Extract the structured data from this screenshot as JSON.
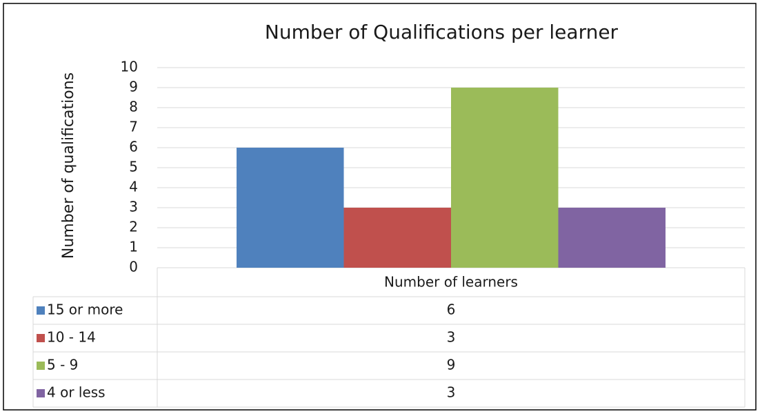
{
  "chart_data": {
    "type": "bar",
    "title": "Number of Qualifications per learner",
    "y_label": "Number of qualifications",
    "categories": [
      "Number of learners"
    ],
    "series": [
      {
        "name": "15 or more",
        "color": "#4f81bd",
        "values": [
          6
        ]
      },
      {
        "name": "10 - 14",
        "color": "#c0504d",
        "values": [
          3
        ]
      },
      {
        "name": "5 - 9",
        "color": "#9bbb59",
        "values": [
          9
        ]
      },
      {
        "name": "4 or less",
        "color": "#8064a2",
        "values": [
          3
        ]
      }
    ],
    "ylim": [
      0,
      10
    ],
    "yticks": [
      0,
      1,
      2,
      3,
      4,
      5,
      6,
      7,
      8,
      9,
      10
    ],
    "grid": true,
    "data_table": true
  }
}
